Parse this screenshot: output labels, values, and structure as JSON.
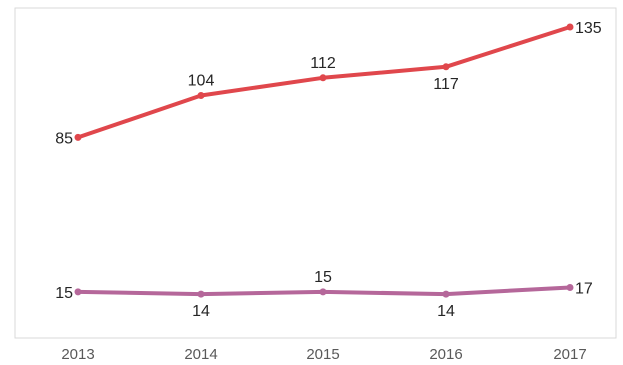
{
  "chart_data": {
    "type": "line",
    "title": "",
    "xlabel": "",
    "ylabel": "",
    "categories": [
      "2013",
      "2014",
      "2015",
      "2016",
      "2017"
    ],
    "ylim": [
      0,
      140
    ],
    "grid": false,
    "legend": "none",
    "series": [
      {
        "values": [
          85,
          104,
          112,
          117,
          135
        ],
        "color": "#e0474c",
        "label_positions": [
          "left",
          "above",
          "above",
          "below",
          "right"
        ]
      },
      {
        "values": [
          15,
          14,
          15,
          14,
          17
        ],
        "color": "#b5679a",
        "label_positions": [
          "left",
          "below",
          "above",
          "below",
          "right"
        ]
      }
    ]
  }
}
